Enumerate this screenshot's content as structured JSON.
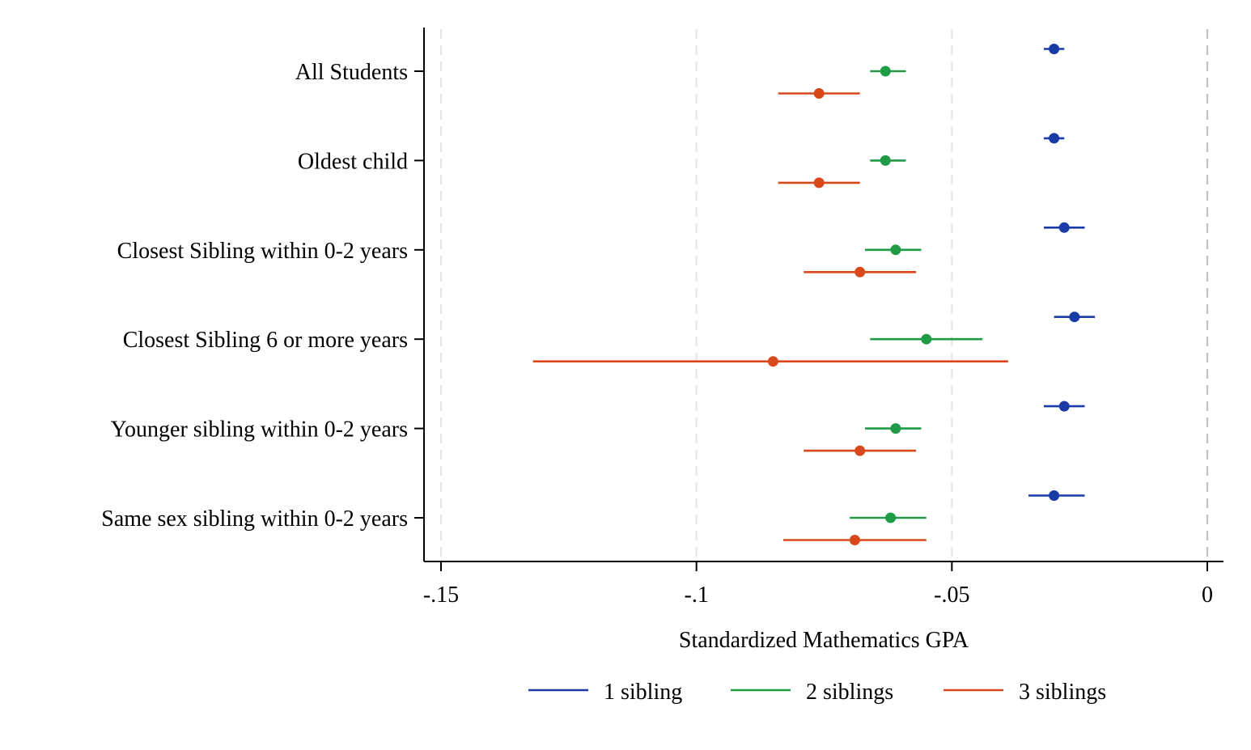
{
  "chart_data": {
    "type": "scatter",
    "subtype": "coefficient-plot-with-confidence-intervals",
    "title": "",
    "xlabel": "Standardized Mathematics GPA",
    "ylabel": "",
    "xlim": [
      -0.153,
      0.003
    ],
    "x_ticks": [
      -0.15,
      -0.1,
      -0.05,
      0
    ],
    "x_tick_labels": [
      "-.15",
      "-.1",
      "-.05",
      "0"
    ],
    "grid": "vertical dashed lines at x ticks",
    "legend_position": "bottom",
    "categories": [
      "All Students",
      "Oldest child",
      "Closest Sibling within 0-2 years",
      "Closest Sibling 6 or more years",
      "Younger sibling within 0-2 years",
      "Same sex sibling within 0-2 years"
    ],
    "series": [
      {
        "name": "1 sibling",
        "color": "#1a3aa8",
        "estimates": [
          -0.03,
          -0.03,
          -0.028,
          -0.026,
          -0.028,
          -0.03
        ],
        "ci_low": [
          -0.032,
          -0.032,
          -0.032,
          -0.03,
          -0.032,
          -0.035
        ],
        "ci_high": [
          -0.028,
          -0.028,
          -0.024,
          -0.022,
          -0.024,
          -0.024
        ]
      },
      {
        "name": "2 siblings",
        "color": "#1f9a45",
        "estimates": [
          -0.063,
          -0.063,
          -0.061,
          -0.055,
          -0.061,
          -0.062
        ],
        "ci_low": [
          -0.066,
          -0.066,
          -0.067,
          -0.066,
          -0.067,
          -0.07
        ],
        "ci_high": [
          -0.059,
          -0.059,
          -0.056,
          -0.044,
          -0.056,
          -0.055
        ]
      },
      {
        "name": "3 siblings",
        "color": "#d9481a",
        "estimates": [
          -0.076,
          -0.076,
          -0.068,
          -0.085,
          -0.068,
          -0.069
        ],
        "ci_low": [
          -0.084,
          -0.084,
          -0.079,
          -0.132,
          -0.079,
          -0.083
        ],
        "ci_high": [
          -0.068,
          -0.068,
          -0.057,
          -0.039,
          -0.057,
          -0.055
        ]
      }
    ]
  }
}
